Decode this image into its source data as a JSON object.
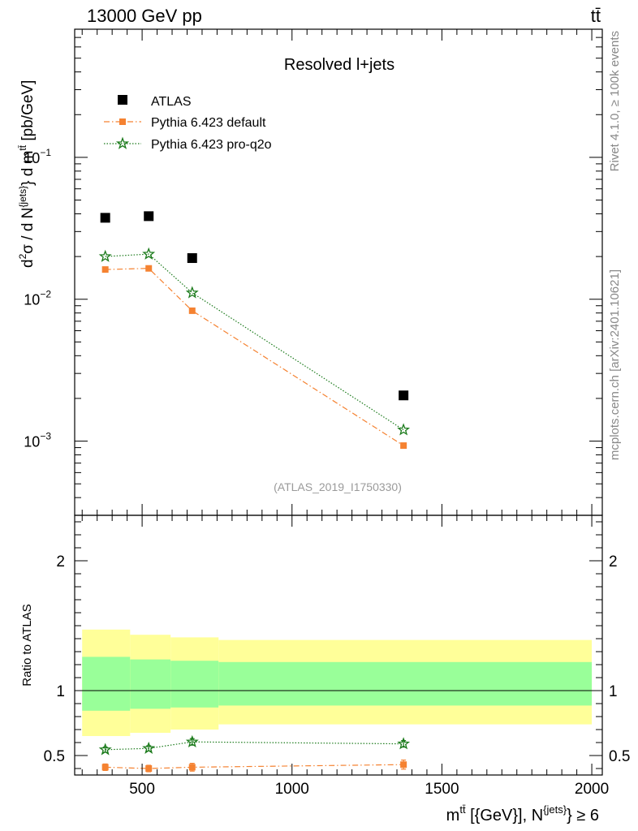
{
  "header": {
    "energy_label": "13000 GeV pp",
    "process_main": "tt",
    "process_bar": "̄"
  },
  "side_labels": {
    "rivet": "Rivet 4.1.0, ≥ 100k events",
    "mcplots": "mcplots.cern.ch [arXiv:2401.10621]"
  },
  "chart_data": [
    {
      "id": "main",
      "type": "scatter",
      "title": "Resolved l+jets",
      "analysis_tag": "(ATLAS_2019_I1750330)",
      "ylabel": {
        "p1": "d",
        "s1": "2",
        "p2": "σ  /  d N",
        "s2": "{jets}",
        "p3": "} d m",
        "s3": "tt̄",
        "p4": " [pb/GeV]"
      },
      "yscale": "log",
      "ylim": [
        0.0003,
        0.8
      ],
      "xlim": [
        275,
        2035
      ],
      "ytick_labels": [
        {
          "value": 0.1,
          "base": "10",
          "exp": "−1"
        },
        {
          "value": 0.01,
          "base": "10",
          "exp": "−2"
        },
        {
          "value": 0.001,
          "base": "10",
          "exp": "−3"
        }
      ],
      "series": [
        {
          "name": "ATLAS",
          "color": "#000000",
          "marker": "square",
          "line": "none",
          "x": [
            377,
            522,
            667,
            1372
          ],
          "y": [
            0.0375,
            0.0385,
            0.0195,
            0.0021
          ]
        },
        {
          "name": "Pythia 6.423 default",
          "color": "#f58231",
          "marker": "square-small",
          "line": "dashdot",
          "x": [
            377,
            522,
            667,
            1372
          ],
          "y": [
            0.0162,
            0.0165,
            0.0083,
            0.00093
          ]
        },
        {
          "name": "Pythia 6.423 pro-q2o",
          "color": "#1a7a1a",
          "marker": "star",
          "line": "dotted",
          "x": [
            377,
            522,
            667,
            1372
          ],
          "y": [
            0.02,
            0.0208,
            0.0111,
            0.0012
          ]
        }
      ]
    },
    {
      "id": "ratio",
      "type": "scatter",
      "ylabel": "Ratio to ATLAS",
      "xlabel": {
        "p1": "m",
        "s1": "tt̄",
        "p2": " [{GeV}], N",
        "s2": "{jets}",
        "p3": "} ≥ 6"
      },
      "xlim": [
        275,
        2035
      ],
      "ylim": [
        0.35,
        2.35
      ],
      "xticks": [
        500,
        1000,
        1500,
        2000
      ],
      "xtick_labels": [
        "500",
        "1000",
        "1500",
        "2000"
      ],
      "yticks": [
        0.5,
        1,
        2
      ],
      "ytick_labels": [
        "0.5",
        "1",
        "2"
      ],
      "reference_line": 1,
      "bands": [
        {
          "x0": 300,
          "x1": 460,
          "yellow": [
            0.65,
            1.47
          ],
          "green": [
            0.845,
            1.26
          ]
        },
        {
          "x0": 460,
          "x1": 595,
          "yellow": [
            0.675,
            1.43
          ],
          "green": [
            0.86,
            1.24
          ]
        },
        {
          "x0": 595,
          "x1": 755,
          "yellow": [
            0.7,
            1.41
          ],
          "green": [
            0.87,
            1.23
          ]
        },
        {
          "x0": 755,
          "x1": 2000,
          "yellow": [
            0.74,
            1.39
          ],
          "green": [
            0.885,
            1.22
          ]
        }
      ],
      "series": [
        {
          "name": "Pythia 6.423 default",
          "color": "#f58231",
          "marker": "square-small",
          "line": "dashdot",
          "x": [
            377,
            522,
            667,
            1372
          ],
          "y": [
            0.41,
            0.4,
            0.41,
            0.43
          ],
          "err": [
            0.025,
            0.025,
            0.03,
            0.035
          ]
        },
        {
          "name": "Pythia 6.423 pro-q2o",
          "color": "#1a7a1a",
          "marker": "star",
          "line": "dotted",
          "x": [
            377,
            522,
            667,
            1372
          ],
          "y": [
            0.545,
            0.555,
            0.605,
            0.59
          ],
          "err": [
            0.02,
            0.02,
            0.025,
            0.025
          ]
        }
      ]
    }
  ]
}
